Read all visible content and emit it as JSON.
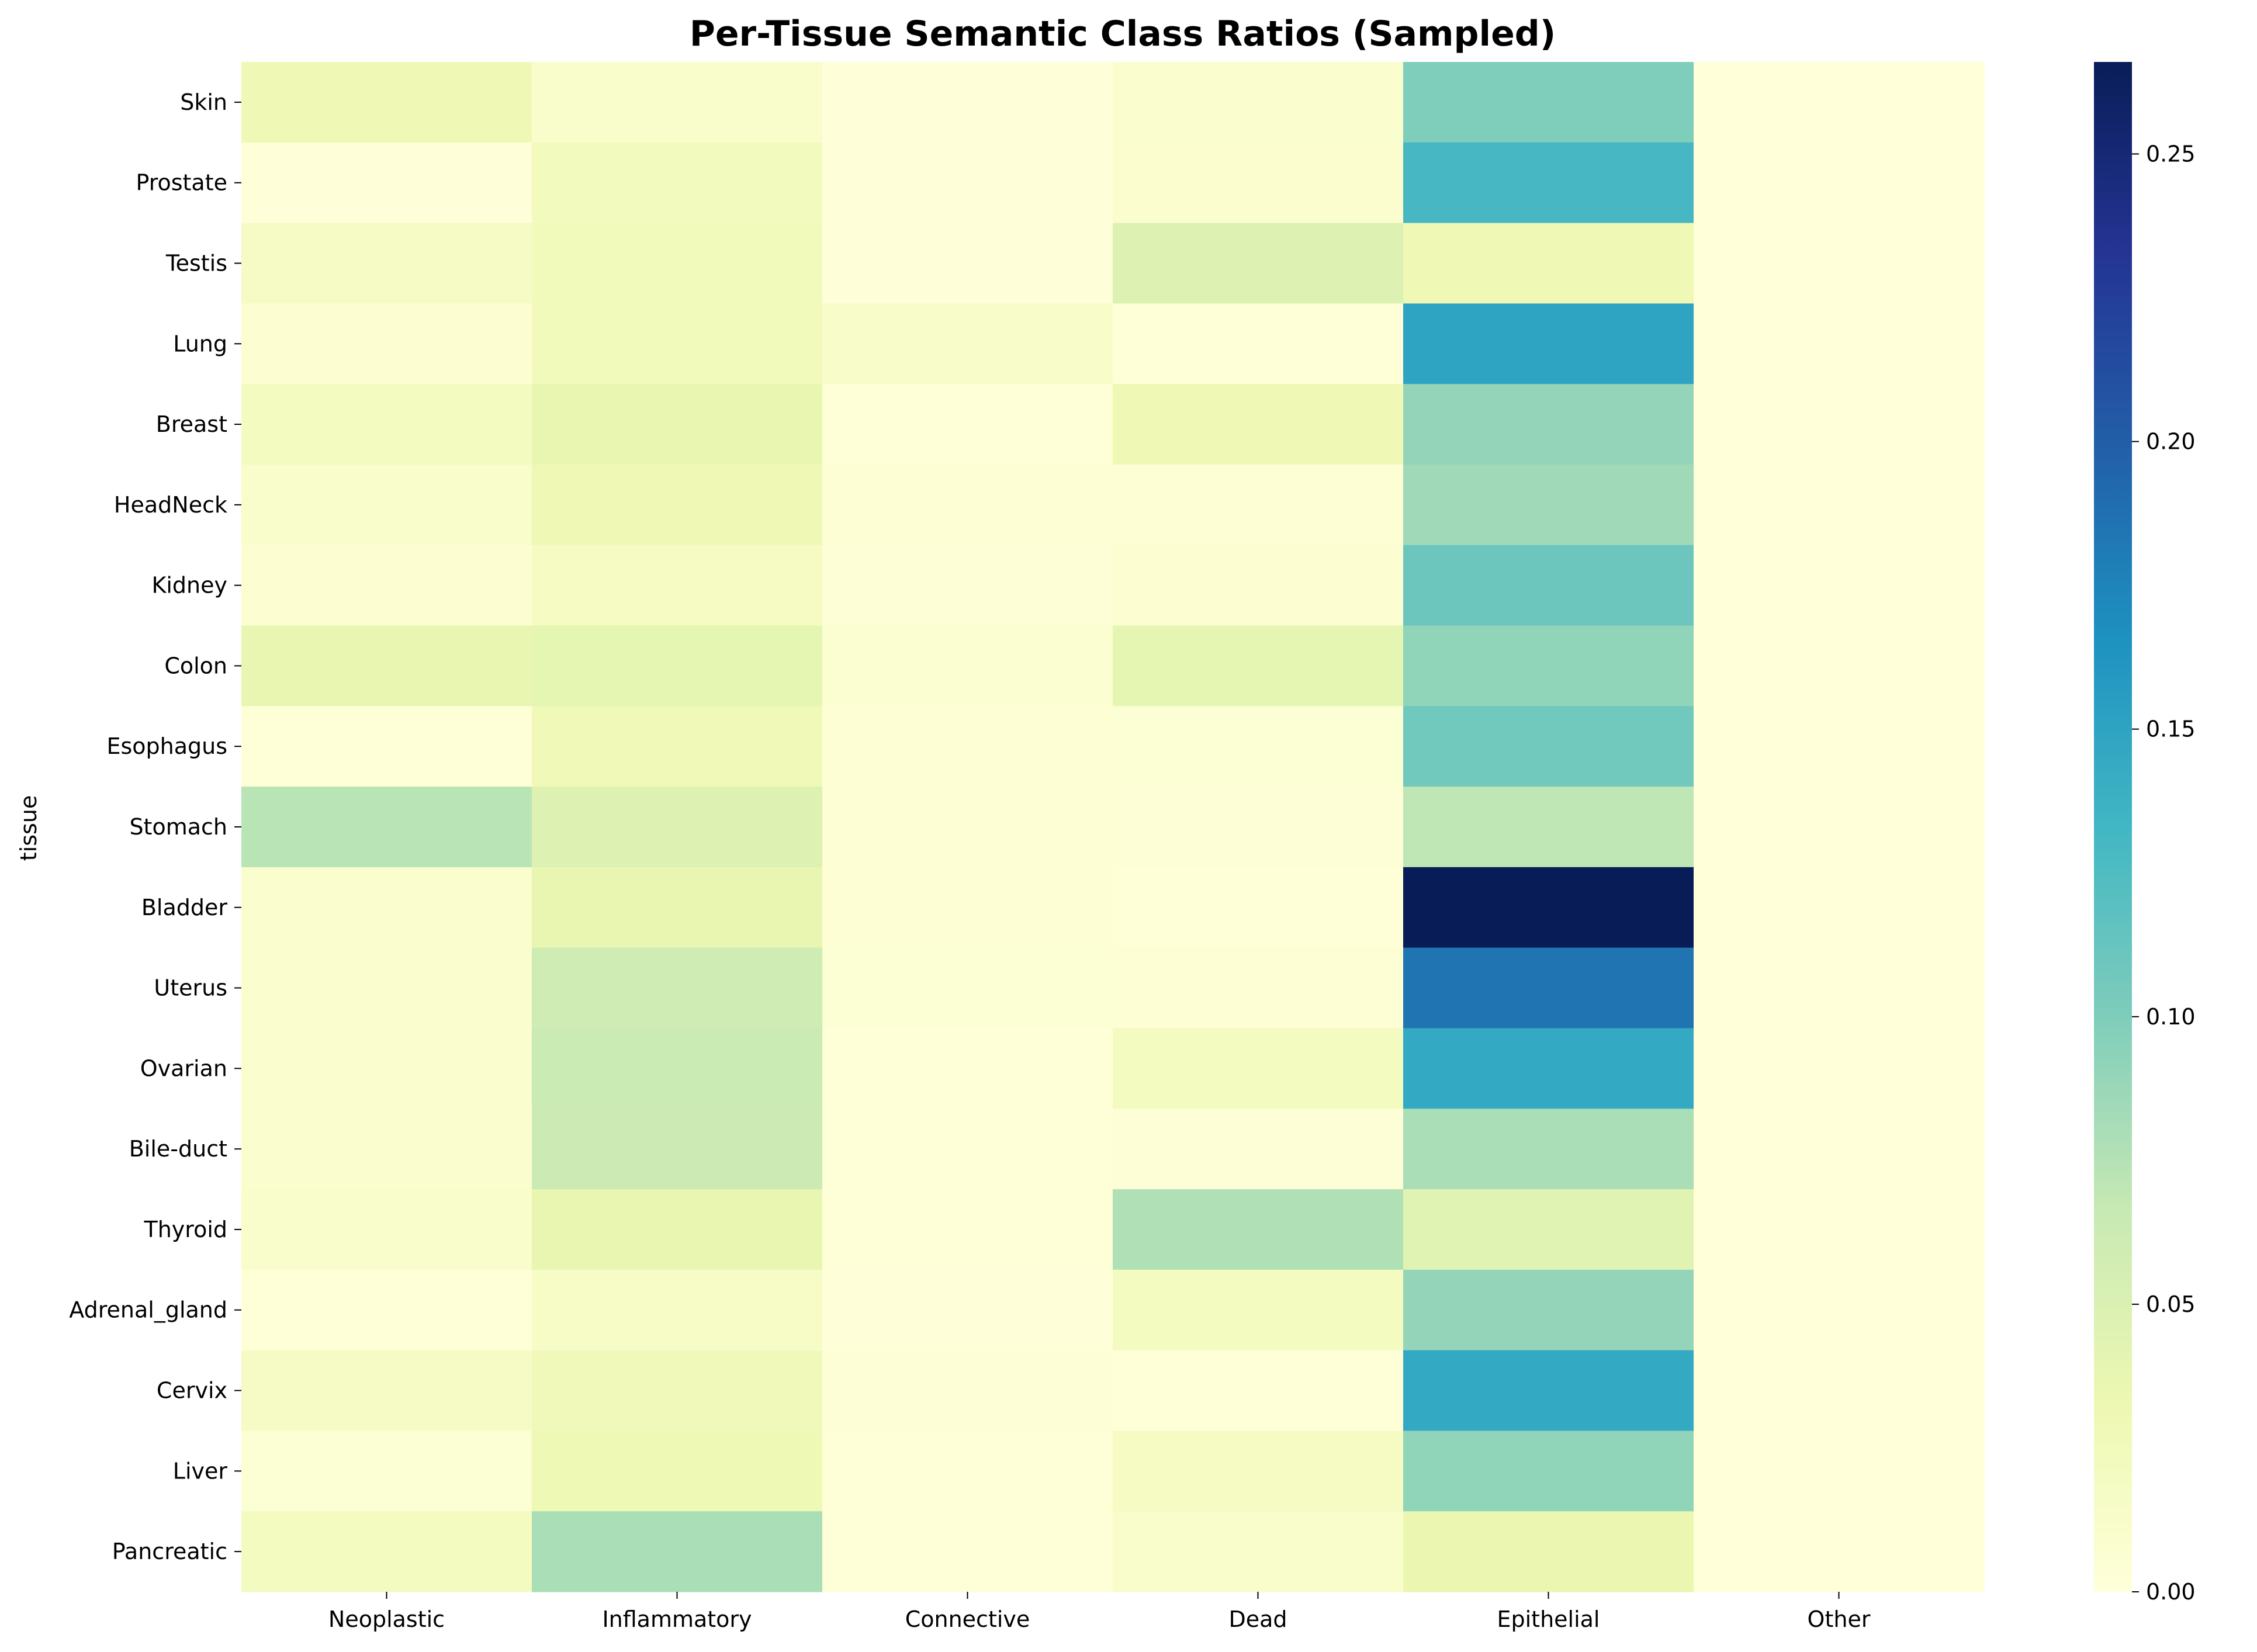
{
  "chart_data": {
    "type": "heatmap",
    "title": "Per-Tissue Semantic Class Ratios (Sampled)",
    "xlabel": "",
    "ylabel": "tissue",
    "columns": [
      "Neoplastic",
      "Inflammatory",
      "Connective",
      "Dead",
      "Epithelial",
      "Other"
    ],
    "rows": [
      "Skin",
      "Prostate",
      "Testis",
      "Lung",
      "Breast",
      "HeadNeck",
      "Kidney",
      "Colon",
      "Esophagus",
      "Stomach",
      "Bladder",
      "Uterus",
      "Ovarian",
      "Bile-duct",
      "Thyroid",
      "Adrenal_gland",
      "Cervix",
      "Liver",
      "Pancreatic"
    ],
    "values": [
      [
        0.03,
        0.012,
        0.001,
        0.01,
        0.1,
        0.0
      ],
      [
        0.001,
        0.023,
        0.001,
        0.008,
        0.13,
        0.0
      ],
      [
        0.017,
        0.026,
        0.001,
        0.048,
        0.03,
        0.0
      ],
      [
        0.006,
        0.025,
        0.013,
        0.002,
        0.15,
        0.0
      ],
      [
        0.021,
        0.037,
        0.002,
        0.03,
        0.09,
        0.0
      ],
      [
        0.012,
        0.03,
        0.004,
        0.004,
        0.085,
        0.0
      ],
      [
        0.006,
        0.019,
        0.003,
        0.006,
        0.11,
        0.0
      ],
      [
        0.038,
        0.04,
        0.007,
        0.04,
        0.092,
        0.0
      ],
      [
        0.002,
        0.028,
        0.004,
        0.005,
        0.107,
        0.0
      ],
      [
        0.073,
        0.048,
        0.004,
        0.003,
        0.07,
        0.0
      ],
      [
        0.01,
        0.037,
        0.004,
        0.002,
        0.266,
        0.0
      ],
      [
        0.01,
        0.06,
        0.005,
        0.004,
        0.185,
        0.0
      ],
      [
        0.01,
        0.063,
        0.002,
        0.02,
        0.145,
        0.0
      ],
      [
        0.01,
        0.062,
        0.002,
        0.003,
        0.08,
        0.0
      ],
      [
        0.012,
        0.038,
        0.002,
        0.077,
        0.045,
        0.0
      ],
      [
        0.002,
        0.015,
        0.001,
        0.021,
        0.09,
        0.0
      ],
      [
        0.017,
        0.027,
        0.003,
        0.002,
        0.145,
        0.0
      ],
      [
        0.005,
        0.029,
        0.002,
        0.019,
        0.092,
        0.0
      ],
      [
        0.02,
        0.08,
        0.002,
        0.011,
        0.035,
        0.0
      ]
    ],
    "colormap": "YlGnBu",
    "vmin": 0.0,
    "vmax": 0.266,
    "colorbar": {
      "ticks": [
        0.0,
        0.05,
        0.1,
        0.15,
        0.2,
        0.25
      ],
      "tick_labels": [
        "0.00",
        "0.05",
        "0.10",
        "0.15",
        "0.20",
        "0.25"
      ]
    },
    "legend": "colorbar-right",
    "grid": false
  }
}
